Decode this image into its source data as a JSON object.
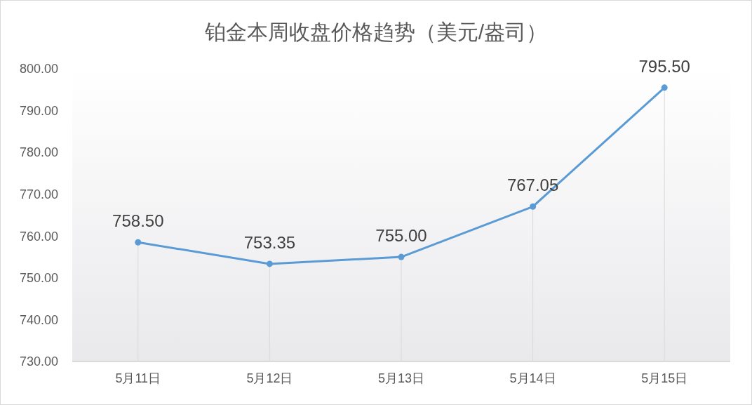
{
  "chart_data": {
    "type": "line",
    "title": "铂金本周收盘价格趋势（美元/盎司）",
    "categories": [
      "5月11日",
      "5月12日",
      "5月13日",
      "5月14日",
      "5月15日"
    ],
    "series": [
      {
        "color": "#5b9bd5",
        "values": [
          758.5,
          753.35,
          755,
          767.05,
          795.5
        ],
        "value_labels": [
          "758.50",
          "753.35",
          "755.00",
          "767.05",
          "795.50"
        ]
      }
    ],
    "ylim": [
      730,
      800
    ],
    "yticks": [
      {
        "value": 730,
        "label": "730.00"
      },
      {
        "value": 740,
        "label": "740.00"
      },
      {
        "value": 750,
        "label": "750.00"
      },
      {
        "value": 760,
        "label": "760.00"
      },
      {
        "value": 770,
        "label": "770.00"
      },
      {
        "value": 780,
        "label": "780.00"
      },
      {
        "value": 790,
        "label": "790.00"
      },
      {
        "value": 800,
        "label": "800.00"
      }
    ],
    "grid": "x",
    "marker": "circle",
    "line_style": "solid"
  }
}
